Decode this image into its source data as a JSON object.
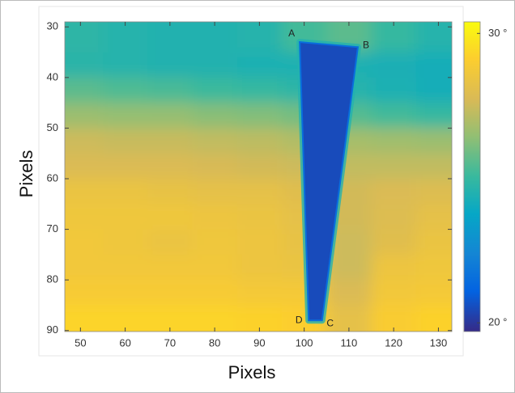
{
  "chart_data": {
    "type": "heatmap",
    "xlabel": "Pixels",
    "ylabel": "Pixels",
    "xlim": [
      46.5,
      133
    ],
    "ylim": [
      29,
      90.2
    ],
    "y_reversed": true,
    "xticks": [
      50,
      60,
      70,
      80,
      90,
      100,
      110,
      120,
      130
    ],
    "yticks": [
      30,
      40,
      50,
      60,
      70,
      80,
      90
    ],
    "x_edges": [
      46.5,
      55,
      65,
      75,
      85,
      95,
      105,
      115,
      125,
      133
    ],
    "y_edges": [
      29,
      35,
      40,
      45,
      50,
      55,
      60,
      65,
      70,
      75,
      80,
      85,
      90.2
    ],
    "z": [
      [
        24.8,
        24.6,
        24.5,
        24.5,
        24.6,
        25.2,
        25.6,
        25.0,
        24.6
      ],
      [
        24.7,
        24.6,
        24.5,
        24.5,
        24.4,
        24.4,
        24.4,
        24.3,
        24.2
      ],
      [
        25.6,
        25.4,
        25.3,
        25.1,
        25.0,
        24.8,
        24.6,
        24.4,
        24.2
      ],
      [
        26.6,
        26.5,
        26.5,
        26.3,
        26.2,
        26.0,
        25.5,
        25.2,
        25.0
      ],
      [
        27.5,
        27.4,
        27.4,
        27.3,
        27.2,
        27.0,
        26.8,
        26.7,
        26.6
      ],
      [
        27.8,
        27.8,
        27.8,
        27.7,
        27.6,
        27.5,
        27.3,
        27.3,
        27.3
      ],
      [
        28.4,
        28.4,
        28.3,
        28.2,
        28.2,
        28.0,
        27.6,
        27.8,
        27.9
      ],
      [
        28.6,
        28.6,
        28.6,
        28.5,
        28.4,
        28.2,
        27.6,
        27.9,
        28.2
      ],
      [
        28.7,
        28.6,
        28.4,
        28.6,
        28.5,
        28.3,
        27.5,
        28.0,
        28.4
      ],
      [
        28.7,
        28.7,
        28.7,
        28.7,
        28.5,
        28.4,
        27.5,
        28.5,
        28.6
      ],
      [
        28.9,
        28.9,
        28.9,
        28.9,
        28.8,
        28.8,
        27.8,
        28.7,
        28.8
      ],
      [
        29.3,
        29.3,
        29.3,
        29.3,
        29.2,
        29.1,
        28.2,
        29.0,
        29.2
      ]
    ],
    "region_value": 20.5,
    "annotations": [
      {
        "text": "A",
        "x": 99,
        "y": 33
      },
      {
        "text": "B",
        "x": 112,
        "y": 34
      },
      {
        "text": "C",
        "x": 104,
        "y": 88
      },
      {
        "text": "D",
        "x": 101,
        "y": 88
      }
    ],
    "colormap": "parula",
    "clim": [
      19.7,
      30.4
    ],
    "cticks": [
      {
        "value": 30,
        "label": "30 °"
      },
      {
        "value": 20,
        "label": "20 °"
      }
    ]
  }
}
